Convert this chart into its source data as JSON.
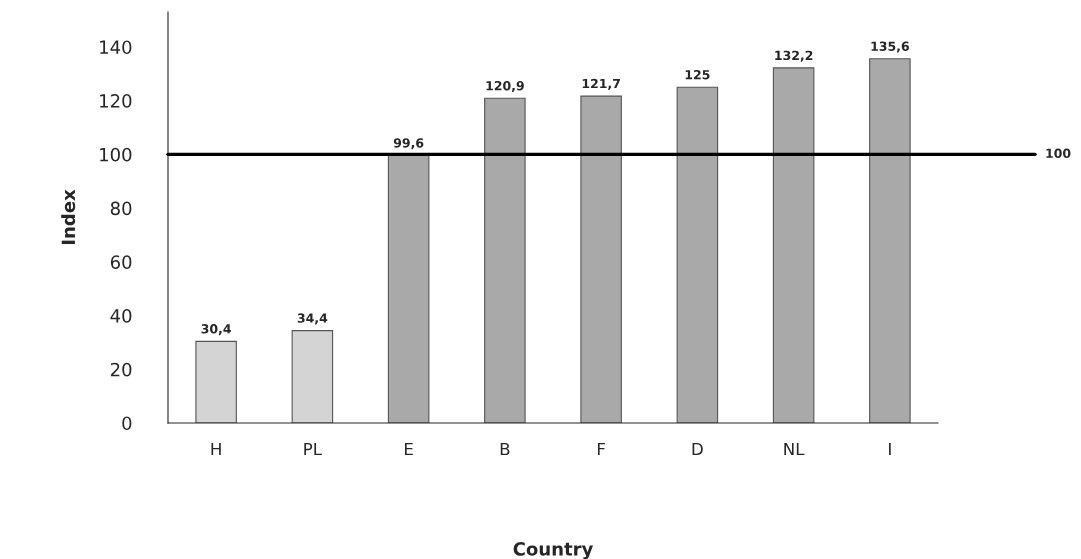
{
  "chart_data": {
    "type": "bar",
    "xlabel": "Country",
    "ylabel": "Index",
    "categories": [
      "H",
      "PL",
      "E",
      "B",
      "F",
      "D",
      "NL",
      "I"
    ],
    "values": [
      30.4,
      34.4,
      99.6,
      120.9,
      121.7,
      125,
      132.2,
      135.6
    ],
    "value_labels": [
      "30,4",
      "34,4",
      "99,6",
      "120,9",
      "121,7",
      "125",
      "132,2",
      "135,6"
    ],
    "colors": [
      "#d4d4d4",
      "#d4d4d4",
      "#a9a9a9",
      "#a9a9a9",
      "#a9a9a9",
      "#a9a9a9",
      "#a9a9a9",
      "#a9a9a9"
    ],
    "ylim": [
      0,
      153
    ],
    "yticks": [
      0,
      20,
      40,
      60,
      80,
      100,
      120,
      140
    ],
    "ref_lines": [
      {
        "axis": "y",
        "value": 100,
        "label": "100",
        "color": "#000000"
      }
    ],
    "grid": false,
    "legend": false
  }
}
